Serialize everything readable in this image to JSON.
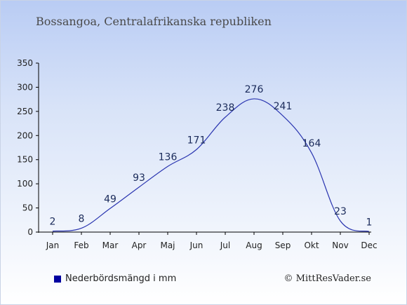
{
  "title": "Bossangoa, Centralafrikanska republiken",
  "legend_label": "Nederbördsmängd i mm",
  "credit": "© MittResVader.se",
  "colors": {
    "line": "#2a35b0",
    "label": "#1a2a5a",
    "legend": "#0000a0"
  },
  "chart_data": {
    "type": "line",
    "categories": [
      "Jan",
      "Feb",
      "Mar",
      "Apr",
      "Maj",
      "Jun",
      "Jul",
      "Aug",
      "Sep",
      "Okt",
      "Nov",
      "Dec"
    ],
    "series": [
      {
        "values": [
          2,
          8,
          49,
          93,
          136,
          171,
          238,
          276,
          241,
          164,
          23,
          1
        ]
      }
    ],
    "ylim": [
      0,
      350
    ],
    "yticks": [
      0,
      50,
      100,
      150,
      200,
      250,
      300,
      350
    ],
    "legend": "bottom-left",
    "grid": false
  }
}
